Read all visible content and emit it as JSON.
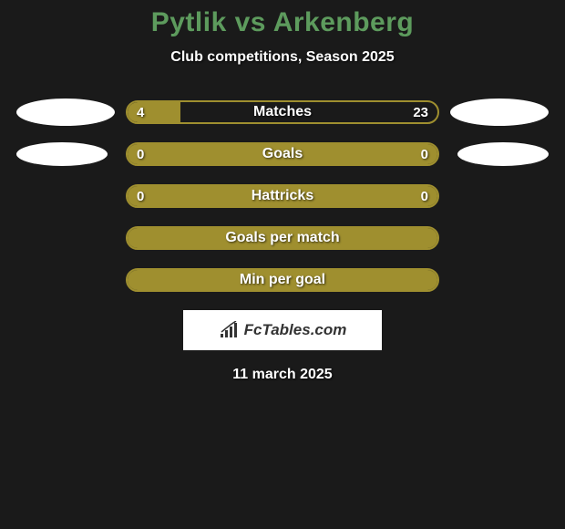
{
  "header": {
    "title": "Pytlik vs Arkenberg",
    "subtitle": "Club competitions, Season 2025",
    "title_color": "#5d9b5d"
  },
  "bars": {
    "bar_color": "#9f8f2f",
    "background_color": "#1a1a1a",
    "text_color": "#ffffff"
  },
  "rows": [
    {
      "label": "Matches",
      "left_value": "4",
      "right_value": "23",
      "fill_percent": 17,
      "show_values": true,
      "avatar_size": "large"
    },
    {
      "label": "Goals",
      "left_value": "0",
      "right_value": "0",
      "fill_percent": 100,
      "show_values": true,
      "avatar_size": "small"
    },
    {
      "label": "Hattricks",
      "left_value": "0",
      "right_value": "0",
      "fill_percent": 100,
      "show_values": true,
      "avatar_size": "none"
    },
    {
      "label": "Goals per match",
      "left_value": "",
      "right_value": "",
      "fill_percent": 100,
      "show_values": false,
      "avatar_size": "none"
    },
    {
      "label": "Min per goal",
      "left_value": "",
      "right_value": "",
      "fill_percent": 100,
      "show_values": false,
      "avatar_size": "none"
    }
  ],
  "footer": {
    "logo_text": "FcTables.com",
    "date": "11 march 2025"
  }
}
